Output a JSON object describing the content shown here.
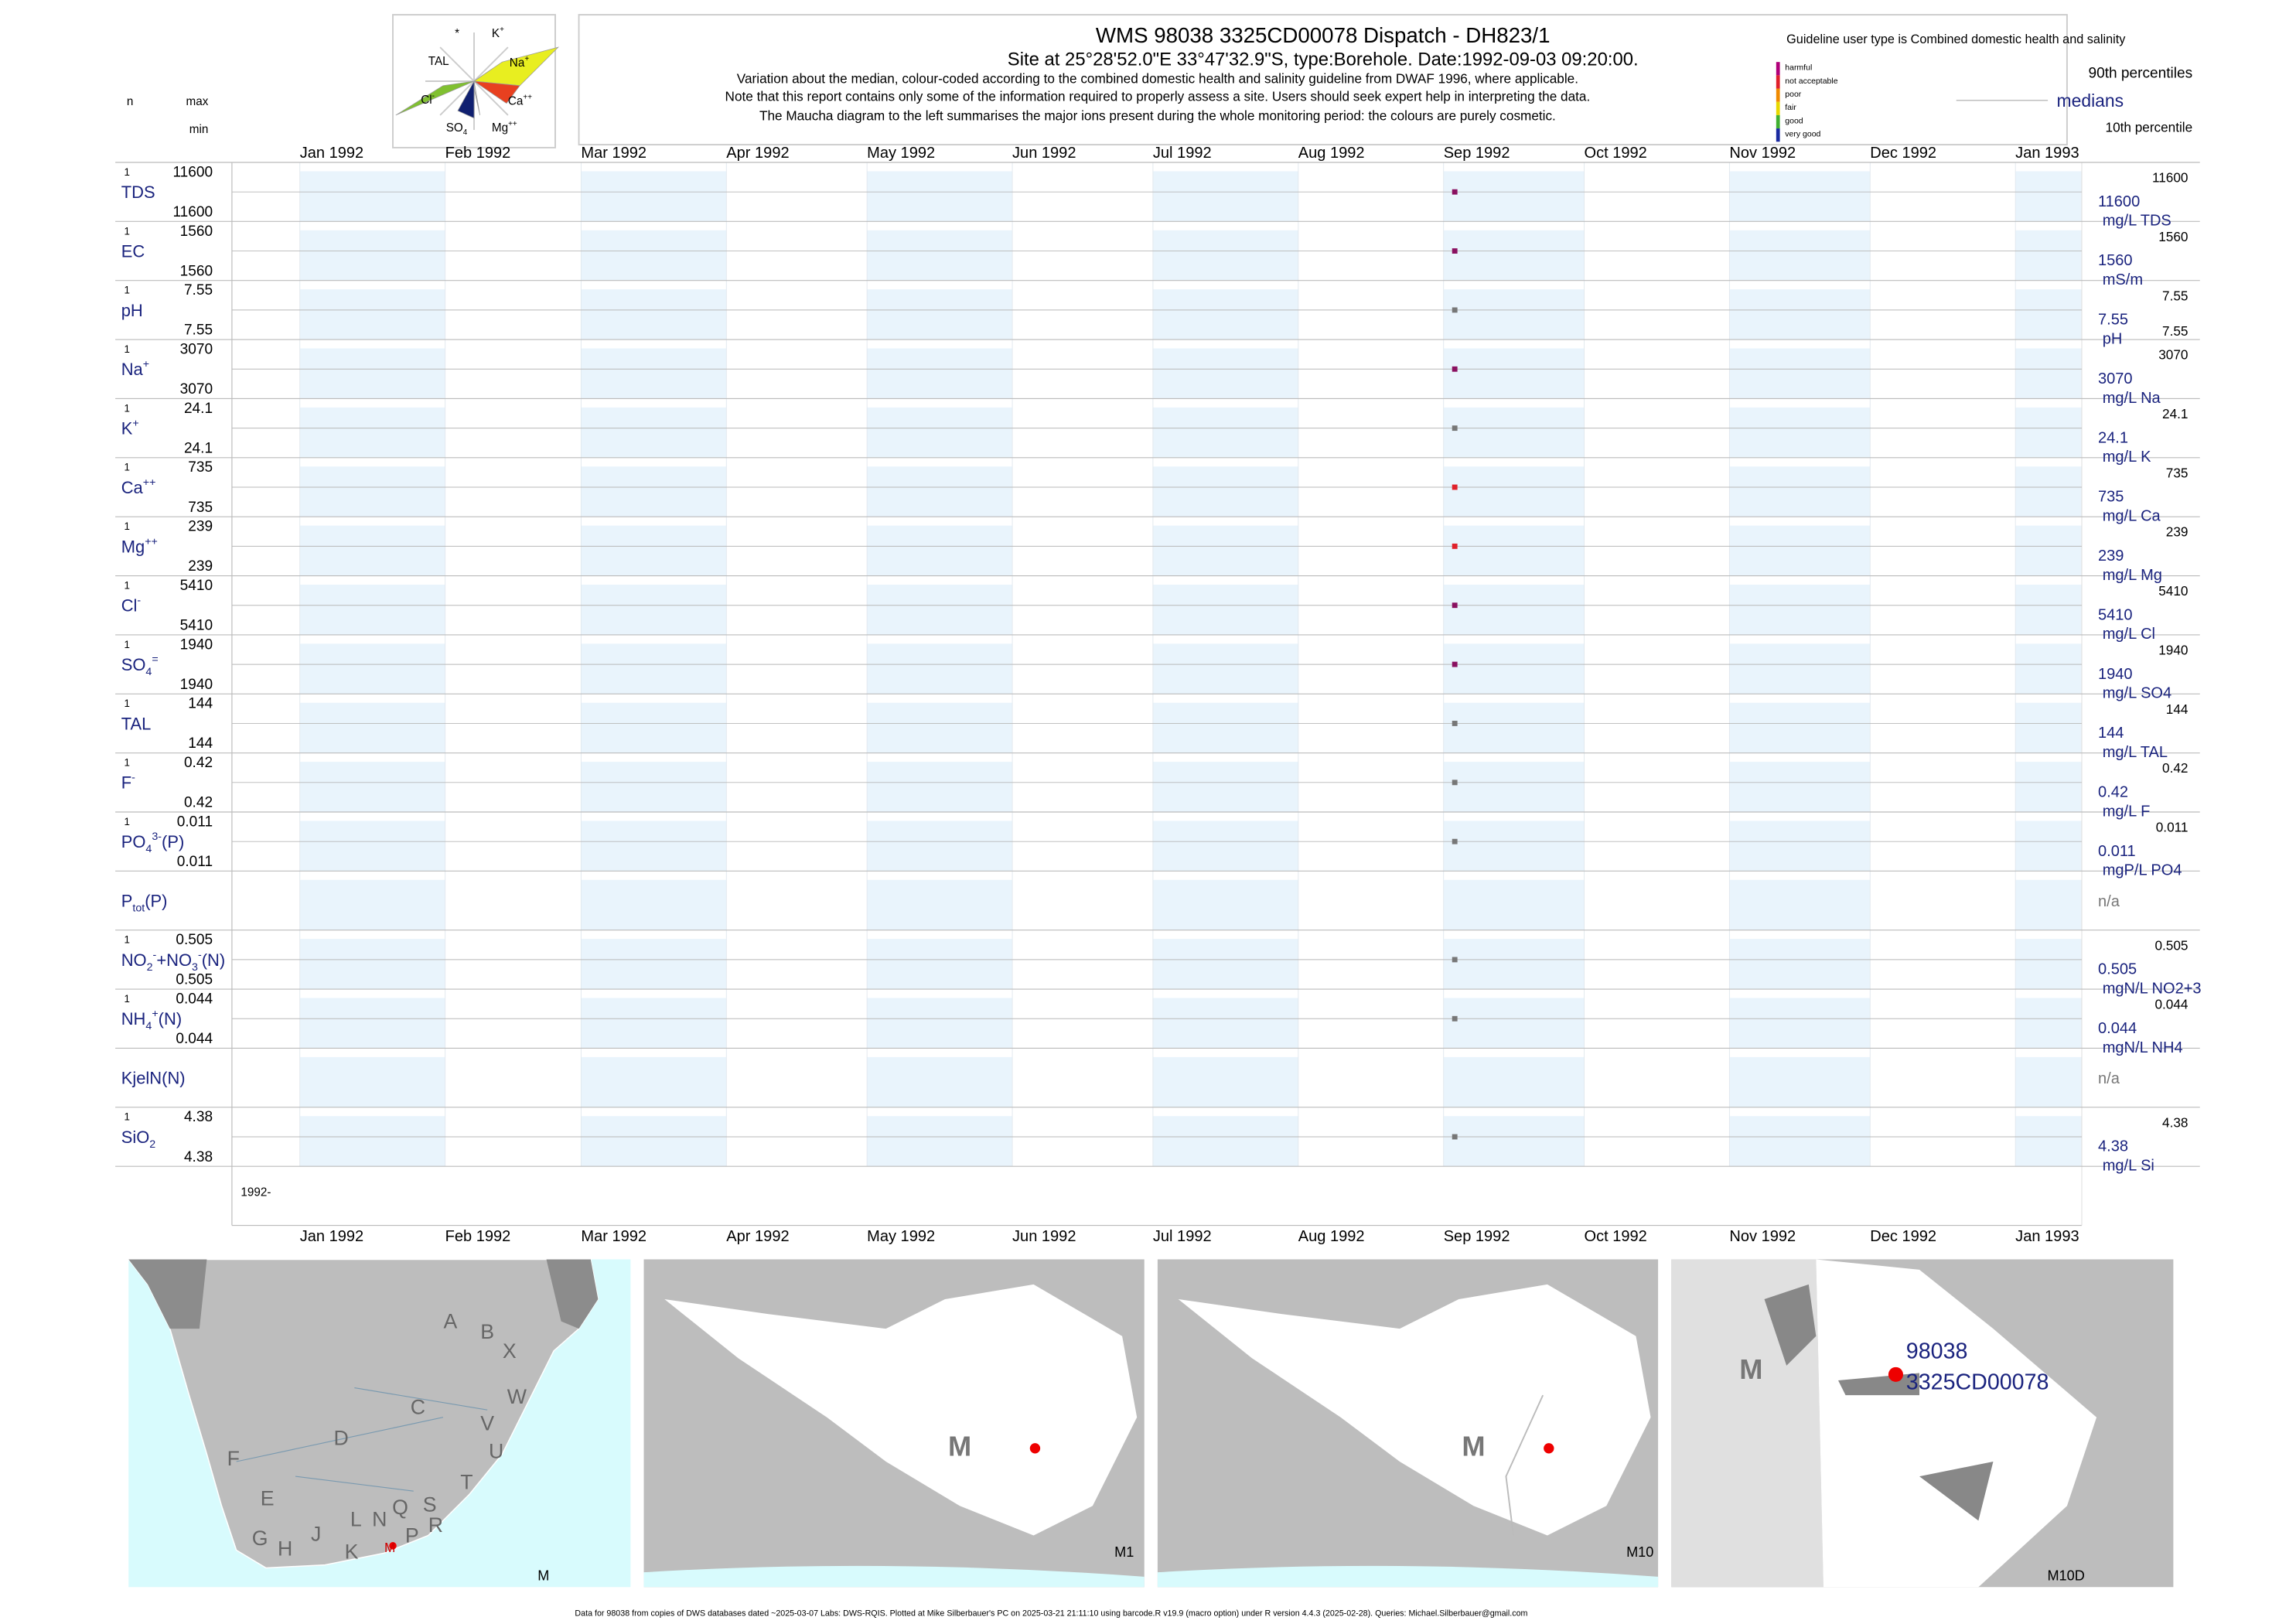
{
  "header": {
    "title": "WMS 98038 3325CD00078 Dispatch - DH823/1",
    "subtitle": "Site at 25°28'52.0\"E 33°47'32.9\"S, type:Borehole. Date:1992-09-03 09:20:00.",
    "notes": [
      "Variation about the median,  colour-coded according to the combined domestic health and salinity guideline from DWAF 1996, where applicable.",
      "Note that this report contains only some of the information required to properly assess a site. Users should seek expert help in interpreting the data.",
      "The Maucha diagram to the left summarises the major ions present during the whole monitoring period: the colours are purely cosmetic."
    ],
    "n_label": "n",
    "max_label": "max",
    "min_label": "min"
  },
  "maucha": {
    "labels": [
      [
        {
          "t": "*"
        }
      ],
      [
        {
          "t": "K"
        },
        {
          "t": "+",
          "pos": "sup"
        }
      ],
      [
        {
          "t": "TAL"
        }
      ],
      [
        {
          "t": "Na"
        },
        {
          "t": "+",
          "pos": "sup"
        }
      ],
      [
        {
          "t": "Cl"
        },
        {
          "t": "-",
          "pos": "sup"
        }
      ],
      [
        {
          "t": "Ca"
        },
        {
          "t": "++",
          "pos": "sup"
        }
      ],
      [
        {
          "t": "SO"
        },
        {
          "t": "4",
          "pos": "sub"
        }
      ],
      [
        {
          "t": "Mg"
        },
        {
          "t": "++",
          "pos": "sup"
        }
      ]
    ]
  },
  "legend": {
    "guideline": "Guideline user type is Combined domestic health and salinity",
    "classes": [
      {
        "name": "harmful",
        "color": "#b0007a"
      },
      {
        "name": "not acceptable",
        "color": "#e0202a"
      },
      {
        "name": "poor",
        "color": "#f08a00"
      },
      {
        "name": "fair",
        "color": "#e8d800"
      },
      {
        "name": "good",
        "color": "#40b030"
      },
      {
        "name": "very good",
        "color": "#1a2aa0"
      }
    ],
    "p90": "90th percentiles",
    "medians": "medians",
    "p10": "10th percentile"
  },
  "months": [
    "Jan 1992",
    "Feb 1992",
    "Mar 1992",
    "Apr 1992",
    "May 1992",
    "Jun 1992",
    "Jul 1992",
    "Aug 1992",
    "Sep 1992",
    "Oct 1992",
    "Nov 1992",
    "Dec 1992",
    "Jan 1993"
  ],
  "year_label": "1992-",
  "rows": [
    {
      "label": [
        {
          "t": "TDS"
        }
      ],
      "n": 1,
      "max": 11600,
      "min": 11600,
      "median": 11600,
      "unit": "mg/L TDS",
      "right_max": 11600,
      "color": "#8a1060"
    },
    {
      "label": [
        {
          "t": "EC"
        }
      ],
      "n": 1,
      "max": 1560,
      "min": 1560,
      "median": 1560,
      "unit": "mS/m",
      "right_max": 1560,
      "color": "#8a1060"
    },
    {
      "label": [
        {
          "t": "pH"
        }
      ],
      "n": 1,
      "max": 7.55,
      "min": 7.55,
      "median": 7.55,
      "unit": "pH",
      "right_max": 7.55,
      "right_min": 7.55,
      "color": "#777777"
    },
    {
      "label": [
        {
          "t": "Na"
        },
        {
          "t": "+",
          "pos": "sup"
        }
      ],
      "n": 1,
      "max": 3070,
      "min": 3070,
      "median": 3070,
      "unit": "mg/L Na",
      "right_max": 3070,
      "color": "#8a1060"
    },
    {
      "label": [
        {
          "t": "K"
        },
        {
          "t": "+",
          "pos": "sup"
        }
      ],
      "n": 1,
      "max": 24.1,
      "min": 24.1,
      "median": 24.1,
      "unit": "mg/L K",
      "right_max": 24.1,
      "color": "#777777"
    },
    {
      "label": [
        {
          "t": "Ca"
        },
        {
          "t": "++",
          "pos": "sup"
        }
      ],
      "n": 1,
      "max": 735,
      "min": 735,
      "median": 735,
      "unit": "mg/L Ca",
      "right_max": 735,
      "color": "#e0202a"
    },
    {
      "label": [
        {
          "t": "Mg"
        },
        {
          "t": "++",
          "pos": "sup"
        }
      ],
      "n": 1,
      "max": 239,
      "min": 239,
      "median": 239,
      "unit": "mg/L Mg",
      "right_max": 239,
      "color": "#e0202a"
    },
    {
      "label": [
        {
          "t": "Cl"
        },
        {
          "t": "-",
          "pos": "sup"
        }
      ],
      "n": 1,
      "max": 5410,
      "min": 5410,
      "median": 5410,
      "unit": "mg/L Cl",
      "right_max": 5410,
      "color": "#8a1060"
    },
    {
      "label": [
        {
          "t": "SO"
        },
        {
          "t": "4",
          "pos": "sub"
        },
        {
          "t": "=",
          "pos": "sup"
        }
      ],
      "n": 1,
      "max": 1940,
      "min": 1940,
      "median": 1940,
      "unit": "mg/L SO4",
      "right_max": 1940,
      "color": "#8a1060"
    },
    {
      "label": [
        {
          "t": "TAL"
        }
      ],
      "n": 1,
      "max": 144,
      "min": 144,
      "median": 144,
      "unit": "mg/L TAL",
      "right_max": 144,
      "color": "#777777"
    },
    {
      "label": [
        {
          "t": "F"
        },
        {
          "t": "-",
          "pos": "sup"
        }
      ],
      "n": 1,
      "max": 0.42,
      "min": 0.42,
      "median": 0.42,
      "unit": "mg/L F",
      "right_max": 0.42,
      "color": "#777777"
    },
    {
      "label": [
        {
          "t": "PO"
        },
        {
          "t": "4",
          "pos": "sub"
        },
        {
          "t": "3-",
          "pos": "sup"
        },
        {
          "t": "(P)"
        }
      ],
      "n": 1,
      "max": 0.011,
      "min": 0.011,
      "median": 0.011,
      "unit": "mgP/L PO4",
      "right_max": 0.011,
      "color": "#777777"
    },
    {
      "label": [
        {
          "t": "P"
        },
        {
          "t": "tot",
          "pos": "sub"
        },
        {
          "t": "(P)"
        }
      ],
      "median": "n/a"
    },
    {
      "label": [
        {
          "t": "NO"
        },
        {
          "t": "2",
          "pos": "sub"
        },
        {
          "t": "-",
          "pos": "sup"
        },
        {
          "t": "+NO"
        },
        {
          "t": "3",
          "pos": "sub"
        },
        {
          "t": "-",
          "pos": "sup"
        },
        {
          "t": "(N)"
        }
      ],
      "n": 1,
      "max": 0.505,
      "min": 0.505,
      "median": 0.505,
      "unit": "mgN/L NO2+3",
      "right_max": 0.505,
      "color": "#777777"
    },
    {
      "label": [
        {
          "t": "NH"
        },
        {
          "t": "4",
          "pos": "sub"
        },
        {
          "t": "+",
          "pos": "sup"
        },
        {
          "t": "(N)"
        }
      ],
      "n": 1,
      "max": 0.044,
      "min": 0.044,
      "median": 0.044,
      "unit": "mgN/L NH4",
      "right_max": 0.044,
      "color": "#777777"
    },
    {
      "label": [
        {
          "t": "KjelN(N)"
        }
      ],
      "median": "n/a"
    },
    {
      "label": [
        {
          "t": "SiO"
        },
        {
          "t": "2",
          "pos": "sub"
        }
      ],
      "n": 1,
      "max": 4.38,
      "min": 4.38,
      "median": 4.38,
      "unit": "mg/L Si",
      "right_max": 4.38,
      "color": "#777777"
    }
  ],
  "maps": {
    "regions": [
      "A",
      "B",
      "X",
      "W",
      "C",
      "V",
      "U",
      "D",
      "F",
      "T",
      "E",
      "S",
      "Q",
      "L",
      "N",
      "R",
      "P",
      "G",
      "J",
      "H",
      "K",
      "M"
    ],
    "panel_labels": [
      "M",
      "M1",
      "M10",
      "M10D"
    ],
    "catchment": "M",
    "site_id": "98038",
    "site_code": "3325CD00078"
  },
  "footer": "Data for 98038 from copies of DWS databases dated ~2025-03-07 Labs: DWS-RQIS. Plotted at Mike Silberbauer's PC on 2025-03-21 21:11:10 using barcode.R v19.9 (macro option) under R version 4.4.3 (2025-02-28). Queries: Michael.Silberbauer@gmail.com"
}
